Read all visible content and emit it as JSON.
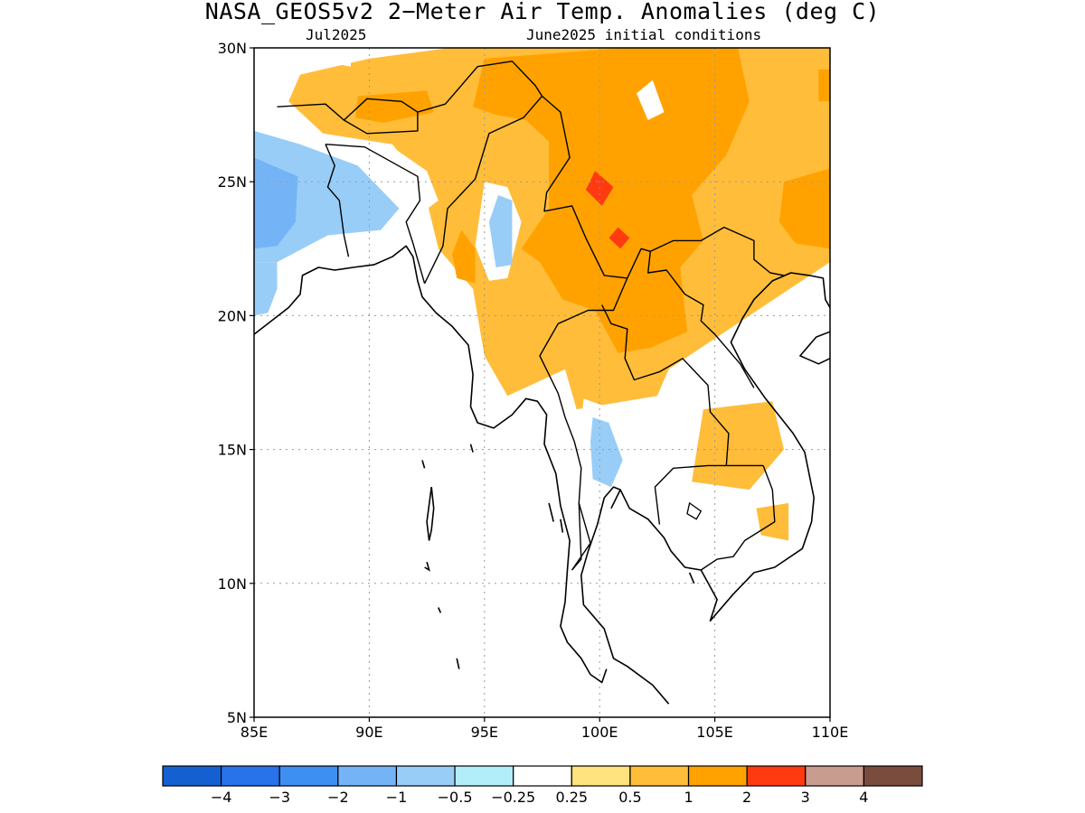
{
  "title": "NASA_GEOS5v2 2−Meter Air Temp. Anomalies (deg C)",
  "subtitle_left": "Jul2025",
  "subtitle_right": "June2025 initial conditions",
  "map": {
    "lon_range": [
      85,
      110
    ],
    "lat_range": [
      5,
      30
    ],
    "lon_ticks": [
      85,
      90,
      95,
      100,
      105,
      110
    ],
    "lat_ticks": [
      5,
      10,
      15,
      20,
      25,
      30
    ],
    "lon_tick_labels": [
      "85E",
      "90E",
      "95E",
      "100E",
      "105E",
      "110E"
    ],
    "lat_tick_labels": [
      "5N",
      "10N",
      "15N",
      "20N",
      "25N",
      "30N"
    ],
    "grid_lines": true
  },
  "colorbar": {
    "colors": [
      "#1560d0",
      "#2872ea",
      "#3d8ff2",
      "#74b4f6",
      "#98cdf8",
      "#b2eefa",
      "#ffffff",
      "#ffe37e",
      "#ffbd3a",
      "#ffa200",
      "#ff3a10",
      "#c99c90",
      "#7a4c3e"
    ],
    "labels": [
      "−4",
      "−3",
      "−2",
      "−1",
      "−0.5",
      "−0.25",
      "0.25",
      "0.5",
      "1",
      "2",
      "3",
      "4"
    ]
  },
  "anomaly_regions": [
    {
      "value": 0.5,
      "label": "yellow",
      "poly": [
        [
          93.5,
          30
        ],
        [
          110,
          30
        ],
        [
          110,
          22
        ],
        [
          103,
          18
        ],
        [
          102.5,
          17
        ],
        [
          99,
          16.5
        ],
        [
          98.5,
          18
        ],
        [
          96,
          17
        ],
        [
          95,
          18.5
        ],
        [
          94.5,
          21
        ],
        [
          93,
          22.5
        ],
        [
          92.3,
          25
        ],
        [
          91,
          26.4
        ],
        [
          88,
          26.8
        ],
        [
          86.5,
          28
        ],
        [
          87,
          29
        ],
        [
          90,
          29.6
        ]
      ]
    },
    {
      "value": 0.5,
      "label": "yellow",
      "poly": [
        [
          104.5,
          16.5
        ],
        [
          107.5,
          16.8
        ],
        [
          108,
          15
        ],
        [
          106.5,
          13.5
        ],
        [
          104,
          13.8
        ]
      ]
    },
    {
      "value": 0.5,
      "label": "yellow",
      "poly": [
        [
          106.8,
          12.8
        ],
        [
          108.2,
          13
        ],
        [
          108.2,
          11.6
        ],
        [
          107,
          11.8
        ]
      ]
    },
    {
      "value": 1,
      "label": "orange",
      "poly": [
        [
          95,
          29.6
        ],
        [
          101,
          30
        ],
        [
          106,
          30
        ],
        [
          106.5,
          28
        ],
        [
          105.5,
          26
        ],
        [
          104,
          24.5
        ],
        [
          104.5,
          22.8
        ],
        [
          103.5,
          21.8
        ],
        [
          103.8,
          19.4
        ],
        [
          102.2,
          18.8
        ],
        [
          100.8,
          18.6
        ],
        [
          99.8,
          20.2
        ],
        [
          98.4,
          20.6
        ],
        [
          97.4,
          22
        ],
        [
          96.6,
          22.5
        ],
        [
          97.8,
          24
        ],
        [
          97.8,
          26.5
        ],
        [
          96.8,
          27.3
        ],
        [
          95.5,
          27.5
        ],
        [
          94.5,
          27.8
        ]
      ]
    },
    {
      "value": 1,
      "label": "orange",
      "poly": [
        [
          109.5,
          29.2
        ],
        [
          110,
          29.2
        ],
        [
          110,
          28
        ],
        [
          109.5,
          28
        ]
      ]
    },
    {
      "value": 1,
      "label": "orange",
      "poly": [
        [
          108,
          25
        ],
        [
          110,
          25.5
        ],
        [
          110,
          22.5
        ],
        [
          108.5,
          22.7
        ],
        [
          107.8,
          23.5
        ]
      ]
    },
    {
      "value": 1,
      "label": "orange",
      "poly": [
        [
          94,
          23.2
        ],
        [
          94.6,
          22.5
        ],
        [
          94.6,
          21.2
        ],
        [
          93.8,
          21.4
        ],
        [
          93.6,
          22.3
        ]
      ]
    },
    {
      "value": 1,
      "label": "orange",
      "poly": [
        [
          89.5,
          28.2
        ],
        [
          92.5,
          28.4
        ],
        [
          92.8,
          27.6
        ],
        [
          90.6,
          27.2
        ],
        [
          89.4,
          27.4
        ]
      ]
    },
    {
      "value": 2,
      "label": "dark-orange",
      "poly": [
        [
          99.8,
          25.4
        ],
        [
          100.6,
          24.8
        ],
        [
          100.1,
          24.1
        ],
        [
          99.4,
          24.7
        ]
      ]
    },
    {
      "value": 2,
      "label": "dark-orange",
      "poly": [
        [
          100.8,
          23.3
        ],
        [
          101.3,
          22.9
        ],
        [
          100.9,
          22.5
        ],
        [
          100.4,
          22.9
        ]
      ]
    },
    {
      "value": -0.25,
      "label": "light-cyan",
      "poly": [
        [
          85,
          28
        ],
        [
          85,
          21
        ],
        [
          86,
          21
        ],
        [
          88,
          22.8
        ],
        [
          91,
          23
        ],
        [
          93,
          24.3
        ],
        [
          92.5,
          25.4
        ],
        [
          91,
          26.3
        ],
        [
          88,
          26.8
        ],
        [
          86.5,
          27.6
        ]
      ]
    },
    {
      "value": -0.25,
      "label": "light-cyan",
      "poly": [
        [
          95,
          25
        ],
        [
          96,
          24.8
        ],
        [
          96.6,
          23.5
        ],
        [
          96,
          21.4
        ],
        [
          95.2,
          21.3
        ],
        [
          94.6,
          22.6
        ]
      ]
    },
    {
      "value": -0.25,
      "label": "light-cyan",
      "poly": [
        [
          99.3,
          16.9
        ],
        [
          100.6,
          16.5
        ],
        [
          101.3,
          14.5
        ],
        [
          100.6,
          13.1
        ],
        [
          99.5,
          13.3
        ],
        [
          99.1,
          14.8
        ]
      ]
    },
    {
      "value": -0.25,
      "label": "light-cyan",
      "poly": [
        [
          85.8,
          30
        ],
        [
          89.2,
          30
        ],
        [
          89.2,
          29.3
        ],
        [
          87.2,
          29.6
        ]
      ]
    },
    {
      "value": -0.25,
      "label": "light-cyan",
      "poly": [
        [
          101.6,
          28.3
        ],
        [
          102.3,
          28.8
        ],
        [
          102.8,
          27.6
        ],
        [
          102.1,
          27.3
        ]
      ]
    },
    {
      "value": -0.25,
      "label": "light-cyan",
      "poly": [
        [
          104.7,
          11.8
        ],
        [
          105.6,
          11.6
        ],
        [
          105.2,
          10.9
        ]
      ]
    },
    {
      "value": -0.25,
      "label": "light-cyan",
      "poly": [
        [
          108.7,
          12.6
        ],
        [
          109,
          12.7
        ],
        [
          109.1,
          11.8
        ],
        [
          108.6,
          11.8
        ]
      ]
    },
    {
      "value": -1,
      "label": "medium-blue",
      "poly": [
        [
          85,
          26.9
        ],
        [
          87,
          26.4
        ],
        [
          89.5,
          25.6
        ],
        [
          91.3,
          24
        ],
        [
          90.5,
          23.2
        ],
        [
          88.2,
          23
        ],
        [
          86,
          22
        ],
        [
          85,
          22
        ]
      ]
    },
    {
      "value": -1,
      "label": "medium-blue",
      "poly": [
        [
          85,
          22
        ],
        [
          86,
          22
        ],
        [
          86,
          21
        ],
        [
          85.6,
          20.1
        ],
        [
          85,
          20
        ]
      ]
    },
    {
      "value": -1,
      "label": "medium-blue",
      "poly": [
        [
          95.6,
          24.5
        ],
        [
          96.2,
          24.3
        ],
        [
          96.2,
          21.9
        ],
        [
          95.5,
          21.8
        ],
        [
          95.2,
          23.5
        ]
      ]
    },
    {
      "value": -1,
      "label": "medium-blue",
      "poly": [
        [
          99.7,
          16.2
        ],
        [
          100.4,
          16
        ],
        [
          101,
          14.6
        ],
        [
          100.5,
          13.6
        ],
        [
          99.7,
          13.9
        ],
        [
          99.6,
          15.3
        ]
      ]
    },
    {
      "value": -2,
      "label": "blue",
      "poly": [
        [
          85,
          25.9
        ],
        [
          86.9,
          25.2
        ],
        [
          86.8,
          23.5
        ],
        [
          86,
          22.6
        ],
        [
          85,
          22.5
        ]
      ]
    }
  ],
  "coastlines": [
    [
      [
        85,
        19.3
      ],
      [
        85.6,
        19.7
      ],
      [
        86.5,
        20.3
      ],
      [
        87,
        20.8
      ],
      [
        87.1,
        21.5
      ],
      [
        87.8,
        21.8
      ],
      [
        88.5,
        21.7
      ],
      [
        89.3,
        21.8
      ],
      [
        90.2,
        21.9
      ],
      [
        91,
        22.2
      ],
      [
        91.6,
        22.6
      ],
      [
        91.9,
        22.2
      ],
      [
        92.1,
        21.3
      ],
      [
        92.3,
        20.7
      ],
      [
        92.9,
        20.1
      ],
      [
        93.6,
        19.6
      ],
      [
        94.3,
        18.9
      ],
      [
        94.5,
        17.8
      ],
      [
        94.4,
        16.6
      ],
      [
        94.7,
        16
      ],
      [
        95.4,
        15.8
      ],
      [
        96.2,
        16.3
      ],
      [
        96.8,
        16.9
      ],
      [
        97.3,
        16.8
      ],
      [
        97.7,
        16.3
      ],
      [
        97.6,
        15.2
      ],
      [
        98.1,
        14.1
      ],
      [
        98.3,
        12.9
      ],
      [
        98.7,
        11.6
      ],
      [
        98.6,
        10.5
      ],
      [
        98.5,
        9.3
      ],
      [
        98.3,
        8.4
      ],
      [
        98.6,
        7.8
      ],
      [
        99.2,
        7.2
      ],
      [
        99.6,
        6.6
      ],
      [
        100.1,
        6.3
      ],
      [
        100.3,
        6.8
      ]
    ],
    [
      [
        100.5,
        12.8
      ],
      [
        100.9,
        13.5
      ],
      [
        100.6,
        13.6
      ],
      [
        100.2,
        13.2
      ],
      [
        99.9,
        12.2
      ],
      [
        99.5,
        11.2
      ],
      [
        99.2,
        10.3
      ],
      [
        99.3,
        9.2
      ],
      [
        100.2,
        8.3
      ],
      [
        100.6,
        7.2
      ],
      [
        101.2,
        6.9
      ],
      [
        102.3,
        6.2
      ],
      [
        103,
        5.5
      ]
    ],
    [
      [
        100.9,
        13.5
      ],
      [
        101.3,
        12.8
      ],
      [
        102.1,
        12.4
      ],
      [
        102.8,
        11.7
      ],
      [
        103.1,
        11.2
      ],
      [
        103.7,
        10.6
      ],
      [
        104.4,
        10.5
      ],
      [
        105.1,
        9.4
      ],
      [
        104.8,
        8.6
      ],
      [
        105.8,
        9.6
      ],
      [
        106.7,
        10.4
      ],
      [
        107.6,
        10.6
      ],
      [
        108.8,
        11.3
      ],
      [
        109.2,
        12.3
      ],
      [
        109.3,
        13.2
      ],
      [
        108.9,
        14.9
      ],
      [
        108.4,
        15.6
      ],
      [
        107.2,
        16.9
      ],
      [
        106.3,
        18
      ],
      [
        105.7,
        19
      ],
      [
        106.2,
        19.9
      ],
      [
        106.7,
        20.6
      ],
      [
        107.5,
        21.3
      ],
      [
        108.3,
        21.6
      ],
      [
        109.1,
        21.5
      ],
      [
        109.7,
        21.4
      ],
      [
        109.8,
        20.6
      ],
      [
        110,
        20.3
      ]
    ],
    [
      [
        110,
        19.4
      ],
      [
        109.4,
        19.2
      ],
      [
        108.7,
        18.5
      ],
      [
        109.5,
        18.2
      ],
      [
        110,
        18.4
      ]
    ]
  ],
  "borders": [
    [
      [
        88.1,
        26.4
      ],
      [
        88.5,
        25.6
      ],
      [
        88.2,
        24.8
      ],
      [
        88.7,
        24.3
      ],
      [
        88.9,
        23
      ],
      [
        89.1,
        22.2
      ]
    ],
    [
      [
        88.1,
        26.4
      ],
      [
        89.8,
        26.3
      ],
      [
        92.1,
        25.2
      ],
      [
        92.2,
        24.3
      ],
      [
        91.6,
        23.5
      ],
      [
        91.9,
        22.7
      ],
      [
        92.4,
        21.2
      ]
    ],
    [
      [
        92.4,
        21.2
      ],
      [
        93.2,
        22.6
      ],
      [
        93.4,
        24
      ],
      [
        94.6,
        25.1
      ],
      [
        95.2,
        26.8
      ],
      [
        96.7,
        27.4
      ],
      [
        97.5,
        28.2
      ],
      [
        98.3,
        27.6
      ],
      [
        98.7,
        25.9
      ],
      [
        97.7,
        24.6
      ],
      [
        97.6,
        23.9
      ],
      [
        98.8,
        24.1
      ],
      [
        99.4,
        22.9
      ],
      [
        100.2,
        21.5
      ],
      [
        101.2,
        21.4
      ],
      [
        100.6,
        20.2
      ],
      [
        99.5,
        20.2
      ],
      [
        98.2,
        19.7
      ],
      [
        97.4,
        18.5
      ],
      [
        98.2,
        17.1
      ],
      [
        98.5,
        16.2
      ],
      [
        98.9,
        15.3
      ],
      [
        99.2,
        14.3
      ],
      [
        99.1,
        13
      ],
      [
        99.6,
        11.5
      ],
      [
        98.8,
        10.5
      ]
    ],
    [
      [
        86,
        27.8
      ],
      [
        88.1,
        27.9
      ],
      [
        88.9,
        27.3
      ],
      [
        89.9,
        28.1
      ],
      [
        91.4,
        28
      ],
      [
        92.1,
        27.6
      ],
      [
        93.3,
        27.9
      ],
      [
        94.7,
        29.3
      ],
      [
        96.2,
        29.5
      ],
      [
        97.2,
        28.6
      ],
      [
        97.5,
        28.2
      ]
    ],
    [
      [
        88.9,
        27.3
      ],
      [
        89.9,
        26.8
      ],
      [
        92.1,
        26.9
      ],
      [
        92.1,
        27.6
      ]
    ],
    [
      [
        101.2,
        21.4
      ],
      [
        101.8,
        22.5
      ],
      [
        102.2,
        22.4
      ],
      [
        103.2,
        22.8
      ],
      [
        104.4,
        22.8
      ],
      [
        105.4,
        23.3
      ],
      [
        106.7,
        22.8
      ],
      [
        106.7,
        22.1
      ],
      [
        107.4,
        21.6
      ],
      [
        108,
        21.5
      ]
    ],
    [
      [
        100.1,
        20.4
      ],
      [
        100.5,
        19.7
      ],
      [
        101.2,
        19.5
      ],
      [
        101.1,
        18.4
      ],
      [
        101.5,
        17.6
      ],
      [
        102.6,
        17.9
      ],
      [
        103.6,
        18.4
      ],
      [
        104.7,
        17.4
      ],
      [
        104.8,
        16.4
      ],
      [
        105.6,
        15.6
      ],
      [
        105.5,
        14.4
      ],
      [
        106.2,
        14.4
      ],
      [
        107.1,
        14.4
      ]
    ],
    [
      [
        102.2,
        22.4
      ],
      [
        102.1,
        21.6
      ],
      [
        102.9,
        21.7
      ],
      [
        103.7,
        20.8
      ],
      [
        104.5,
        20.4
      ],
      [
        104.4,
        19.8
      ],
      [
        105,
        19.3
      ],
      [
        106.1,
        18.2
      ],
      [
        106.7,
        17.3
      ]
    ],
    [
      [
        107.1,
        14.4
      ],
      [
        107.5,
        13.5
      ],
      [
        107.6,
        12.3
      ],
      [
        106.3,
        11.6
      ],
      [
        105.8,
        11
      ],
      [
        105.1,
        10.9
      ],
      [
        104.4,
        10.5
      ]
    ],
    [
      [
        102.6,
        12.2
      ],
      [
        102.4,
        13.6
      ],
      [
        103.2,
        14.3
      ],
      [
        104.7,
        14.4
      ],
      [
        105.5,
        14.4
      ]
    ],
    [
      [
        99.1,
        13
      ],
      [
        99.2,
        10.9
      ],
      [
        98.8,
        10.5
      ]
    ]
  ],
  "lakes": [
    [
      [
        103.9,
        13
      ],
      [
        104.4,
        12.7
      ],
      [
        104.2,
        12.4
      ],
      [
        103.8,
        12.6
      ]
    ]
  ],
  "islands": [
    [
      [
        92.7,
        13.6
      ],
      [
        92.8,
        12.8
      ],
      [
        92.7,
        12
      ],
      [
        92.6,
        11.6
      ],
      [
        92.5,
        12.3
      ],
      [
        92.7,
        13.6
      ]
    ],
    [
      [
        92.5,
        10.8
      ],
      [
        92.6,
        10.5
      ],
      [
        92.4,
        10.6
      ]
    ],
    [
      [
        93,
        9.1
      ],
      [
        93.1,
        8.9
      ]
    ],
    [
      [
        93.8,
        7.2
      ],
      [
        93.9,
        6.8
      ]
    ],
    [
      [
        92.3,
        14.6
      ],
      [
        92.4,
        14.3
      ]
    ],
    [
      [
        98.3,
        12.4
      ],
      [
        98.4,
        11.9
      ]
    ],
    [
      [
        97.8,
        13
      ],
      [
        98,
        12.3
      ]
    ],
    [
      [
        103.9,
        10.4
      ],
      [
        104.1,
        10
      ]
    ],
    [
      [
        94.4,
        15.2
      ],
      [
        94.5,
        14.9
      ]
    ]
  ]
}
